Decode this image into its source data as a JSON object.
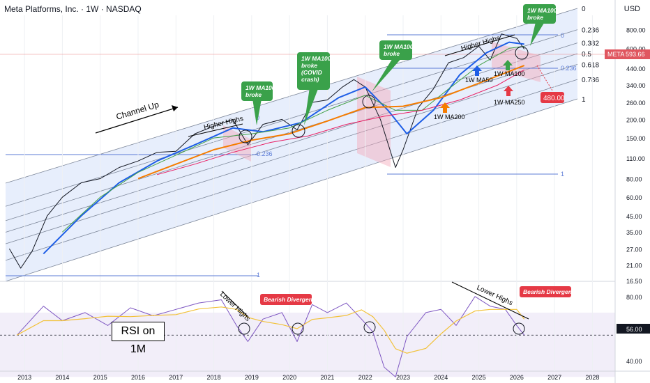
{
  "header": {
    "title": "Meta Platforms, Inc. · 1W · NASDAQ",
    "currency": "USD"
  },
  "colors": {
    "price": "#131722",
    "ma50": "#1e5ee6",
    "ma100": "#43a047",
    "ma200": "#f57c00",
    "ma250": "#e91e63",
    "channel_fill": "#dfe8fb",
    "fib_line": "#5b7bd6",
    "label_green": "#3aa14a",
    "label_red": "#e53945",
    "current_price_bg": "#e0565f",
    "rsi": "#7e57c2",
    "rsi_ma": "#f2c23a"
  },
  "annotations": {
    "channel_up": "Channel Up",
    "higher_highs_1": "Higher Highs",
    "higher_highs_2": "Higher Highs",
    "lower_highs_1": "Lower Highs",
    "lower_highs_2": "Lower Highs",
    "bearish_1": "Bearish Divergence",
    "bearish_2": "Bearish Divergence",
    "callouts": [
      "1W MA100\nbroke",
      "1W MA100\nbroke\n(COVID\ncrash)",
      "1W MA100\nbroke",
      "1W MA100\nbroke"
    ],
    "ma_labels": {
      "ma50": "1W MA50",
      "ma100": "1W MA100",
      "ma200": "1W MA200",
      "ma250": "1W MA250"
    },
    "target_value": "480.00",
    "rsi_label": "RSI on 1M",
    "ticker_tag": "META",
    "ticker_price": "593.66",
    "rsi_tag": "56.00",
    "fib_left": [
      "0",
      "0.236",
      "1"
    ],
    "fib_right_inner": [
      "0",
      "0.236",
      "1"
    ]
  },
  "chart_data": {
    "type": "line",
    "title": "Meta Platforms, Inc. · 1W · NASDAQ",
    "xlabel": "",
    "ylabel": "USD",
    "y_scale": "log",
    "x_tick_labels": [
      "2013",
      "2014",
      "2015",
      "2016",
      "2017",
      "2018",
      "2019",
      "2020",
      "2021",
      "2022",
      "2023",
      "2024",
      "2025",
      "2026",
      "2027",
      "2028"
    ],
    "y_tick_labels": [
      "800.00",
      "600.00",
      "440.00",
      "340.00",
      "260.00",
      "200.00",
      "150.00",
      "110.00",
      "80.00",
      "60.00",
      "45.00",
      "35.00",
      "27.00",
      "21.00",
      "16.50"
    ],
    "rsi_tick_labels": [
      "80.00",
      "60.00",
      "40.00"
    ],
    "channel_fib_levels": [
      "0",
      "0.236",
      "0.382",
      "0.5",
      "0.618",
      "0.786",
      "1"
    ],
    "current_price": 593.66,
    "target_price": 480.0,
    "rsi_current": 56.0,
    "series": [
      {
        "name": "META",
        "x": [
          2012.6,
          2012.9,
          2013.2,
          2013.6,
          2014.0,
          2014.5,
          2015.0,
          2015.5,
          2016.0,
          2016.5,
          2017.0,
          2017.5,
          2018.0,
          2018.5,
          2018.9,
          2019.3,
          2019.8,
          2020.2,
          2020.6,
          2021.0,
          2021.4,
          2021.7,
          2022.0,
          2022.4,
          2022.8,
          2023.0,
          2023.4,
          2023.8,
          2024.2,
          2024.6,
          2025.0,
          2025.3,
          2025.6,
          2026.0,
          2026.2
        ],
        "values": [
          27,
          20,
          26,
          45,
          60,
          75,
          80,
          95,
          105,
          120,
          122,
          160,
          180,
          200,
          135,
          185,
          200,
          170,
          260,
          270,
          330,
          370,
          330,
          200,
          95,
          125,
          240,
          320,
          480,
          520,
          620,
          500,
          750,
          700,
          594
        ]
      },
      {
        "name": "1W MA50",
        "x": [
          2013.5,
          2014.5,
          2015.5,
          2016.5,
          2017.5,
          2018.5,
          2019.3,
          2020.3,
          2021.3,
          2022.0,
          2022.6,
          2023.1,
          2023.8,
          2024.5,
          2025.2,
          2025.8,
          2026.2
        ],
        "values": [
          25,
          45,
          75,
          105,
          135,
          175,
          165,
          190,
          280,
          330,
          230,
          160,
          230,
          400,
          560,
          660,
          640
        ]
      },
      {
        "name": "1W MA100",
        "x": [
          2014.0,
          2015.0,
          2016.0,
          2017.0,
          2018.0,
          2019.0,
          2020.0,
          2021.0,
          2022.0,
          2022.8,
          2023.5,
          2024.2,
          2025.0,
          2025.8,
          2026.2
        ],
        "values": [
          35,
          60,
          88,
          115,
          150,
          160,
          175,
          230,
          290,
          230,
          230,
          320,
          460,
          600,
          620
        ]
      },
      {
        "name": "1W MA200",
        "x": [
          2016.0,
          2017.0,
          2018.0,
          2019.0,
          2020.0,
          2021.0,
          2022.0,
          2023.0,
          2024.0,
          2025.0,
          2026.2
        ],
        "values": [
          80,
          100,
          125,
          145,
          160,
          195,
          240,
          245,
          280,
          350,
          460
        ]
      },
      {
        "name": "1W MA250",
        "x": [
          2016.5,
          2017.5,
          2018.5,
          2019.5,
          2020.5,
          2021.5,
          2022.5,
          2023.5,
          2024.5,
          2025.5,
          2026.2
        ],
        "values": [
          85,
          100,
          120,
          140,
          155,
          185,
          210,
          230,
          270,
          340,
          430
        ]
      },
      {
        "name": "RSI",
        "x": [
          2012.8,
          2013.5,
          2014.0,
          2014.6,
          2015.2,
          2015.8,
          2016.4,
          2017.0,
          2017.6,
          2018.2,
          2018.6,
          2018.9,
          2019.3,
          2019.8,
          2020.2,
          2020.6,
          2021.0,
          2021.5,
          2021.9,
          2022.2,
          2022.5,
          2022.8,
          2023.1,
          2023.6,
          2024.0,
          2024.4,
          2024.9,
          2025.3,
          2025.7,
          2026.0,
          2026.2
        ],
        "values": [
          56,
          74,
          65,
          70,
          62,
          73,
          68,
          72,
          76,
          78,
          62,
          52,
          66,
          70,
          52,
          75,
          70,
          76,
          66,
          58,
          36,
          30,
          55,
          70,
          72,
          62,
          80,
          74,
          72,
          62,
          56
        ]
      }
    ]
  }
}
